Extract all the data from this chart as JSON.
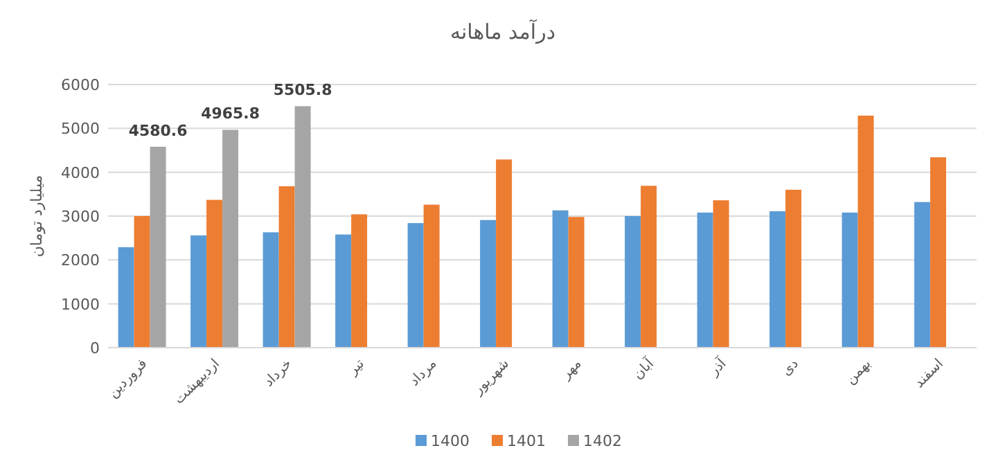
{
  "chart_data": {
    "type": "bar",
    "title": "درآمد ماهانه",
    "ylabel": "میلیارد تومان",
    "categories": [
      "فروردین",
      "اردیبهشت",
      "خرداد",
      "تیر",
      "مرداد",
      "شهریور",
      "مهر",
      "آبان",
      "آذر",
      "دی",
      "بهمن",
      "اسفند"
    ],
    "series": [
      {
        "name": "1400",
        "color": "#5b9bd5",
        "values": [
          2290,
          2560,
          2630,
          2580,
          2840,
          2910,
          3130,
          3000,
          3080,
          3110,
          3080,
          3320
        ]
      },
      {
        "name": "1401",
        "color": "#ed7d31",
        "values": [
          3000,
          3370,
          3680,
          3040,
          3260,
          4290,
          2980,
          3690,
          3360,
          3600,
          5290,
          4340
        ]
      },
      {
        "name": "1402",
        "color": "#a5a5a5",
        "values": [
          4580.6,
          4965.8,
          5505.8,
          null,
          null,
          null,
          null,
          null,
          null,
          null,
          null,
          null
        ],
        "value_labels": [
          "4580.6",
          "4965.8",
          "5505.8",
          null,
          null,
          null,
          null,
          null,
          null,
          null,
          null,
          null
        ]
      }
    ],
    "ylim": [
      0,
      6000
    ],
    "yticks": [
      0,
      1000,
      2000,
      3000,
      4000,
      5000,
      6000
    ],
    "grid": "y",
    "legend": "bottom"
  }
}
